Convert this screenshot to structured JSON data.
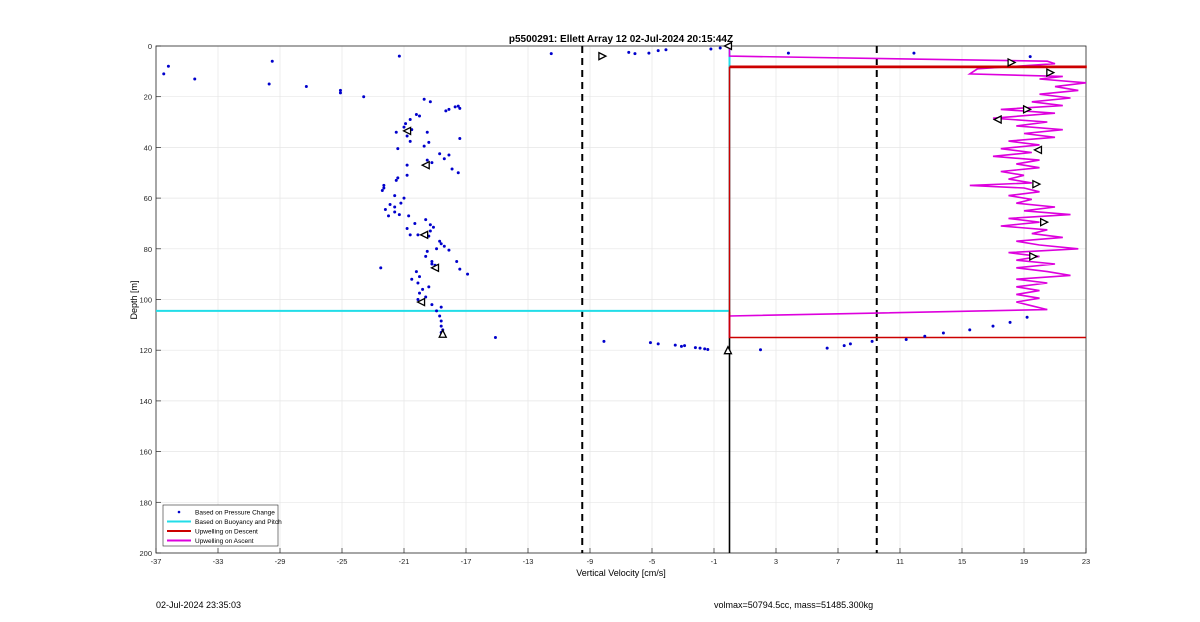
{
  "footer": {
    "timestamp": "02-Jul-2024 23:35:03",
    "vol_mass": "volmax=50794.5cc, mass=51485.300kg"
  },
  "chart_data": {
    "type": "scatter",
    "title": "p5500291: Ellett Array 12 02-Jul-2024 20:15:44Z",
    "xlabel": "Vertical Velocity [cm/s]",
    "ylabel": "Depth [m]",
    "xlim": [
      -37,
      23
    ],
    "ylim": [
      0,
      200
    ],
    "y_reversed": true,
    "xticks": [
      -37,
      -33,
      -29,
      -25,
      -21,
      -17,
      -13,
      -9,
      -5,
      -1,
      3,
      7,
      11,
      15,
      19,
      23
    ],
    "yticks": [
      0,
      20,
      40,
      60,
      80,
      100,
      120,
      140,
      160,
      180,
      200
    ],
    "grid": true,
    "legend_position": "bottom-left",
    "colors": {
      "pressure": "#0000cc",
      "buoyancy": "#22dde8",
      "descent": "#cc0000",
      "ascent": "#dd00dd",
      "markers": "#000000"
    },
    "legend": [
      "Based on Pressure Change",
      "Based on Buoyancy and Pitch",
      "Upwelling on Descent",
      "Upwelling on Ascent"
    ],
    "vlines_dashed": [
      -9.5,
      9.5
    ],
    "vline_solid": 0,
    "pressure_points": [
      [
        -36.2,
        8
      ],
      [
        -36.5,
        11
      ],
      [
        -34.5,
        13
      ],
      [
        -29.5,
        6
      ],
      [
        -29.7,
        15
      ],
      [
        -27.3,
        16
      ],
      [
        -25.1,
        17.5
      ],
      [
        -25.1,
        18.5
      ],
      [
        -23.6,
        20
      ],
      [
        -21.3,
        4
      ],
      [
        -19.7,
        21
      ],
      [
        -19.3,
        22
      ],
      [
        -18.1,
        25
      ],
      [
        -18.3,
        25.6
      ],
      [
        -17.7,
        24
      ],
      [
        -17.4,
        24.6
      ],
      [
        -17.5,
        23.7
      ],
      [
        -20.2,
        27
      ],
      [
        -20.0,
        27.6
      ],
      [
        -20.6,
        29
      ],
      [
        -20.9,
        30.6
      ],
      [
        -21.0,
        32
      ],
      [
        -20.5,
        33
      ],
      [
        -19.5,
        34
      ],
      [
        -17.4,
        36.5
      ],
      [
        -20.6,
        37.6
      ],
      [
        -21.4,
        40.5
      ],
      [
        -19.4,
        38
      ],
      [
        -19.7,
        39.5
      ],
      [
        -20.8,
        35.5
      ],
      [
        -21.5,
        34
      ],
      [
        -18.7,
        42.5
      ],
      [
        -18.1,
        43
      ],
      [
        -18.4,
        44.5
      ],
      [
        -19.5,
        45
      ],
      [
        -20.8,
        47
      ],
      [
        -19.2,
        46
      ],
      [
        -17.9,
        48.5
      ],
      [
        -17.5,
        50
      ],
      [
        -20.8,
        51
      ],
      [
        -21.4,
        52
      ],
      [
        -21.5,
        53
      ],
      [
        -22.3,
        55
      ],
      [
        -22.3,
        56
      ],
      [
        -22.4,
        57
      ],
      [
        -21.6,
        59
      ],
      [
        -21.0,
        60
      ],
      [
        -21.9,
        62.5
      ],
      [
        -21.2,
        62
      ],
      [
        -21.6,
        63.5
      ],
      [
        -22.2,
        64.5
      ],
      [
        -21.6,
        65.5
      ],
      [
        -21.3,
        66.5
      ],
      [
        -20.7,
        67
      ],
      [
        -22.0,
        67
      ],
      [
        -20.3,
        70
      ],
      [
        -19.6,
        68.5
      ],
      [
        -19.3,
        70.5
      ],
      [
        -20.8,
        72
      ],
      [
        -19.1,
        71.5
      ],
      [
        -19.3,
        73
      ],
      [
        -20.1,
        74.5
      ],
      [
        -19.4,
        75
      ],
      [
        -20.6,
        74.5
      ],
      [
        -18.7,
        77
      ],
      [
        -18.6,
        78
      ],
      [
        -18.4,
        79
      ],
      [
        -18.9,
        80
      ],
      [
        -19.5,
        81
      ],
      [
        -18.1,
        80.5
      ],
      [
        -19.6,
        83
      ],
      [
        -19.2,
        85
      ],
      [
        -19.0,
        86.5
      ],
      [
        -17.6,
        85
      ],
      [
        -19.2,
        86
      ],
      [
        -20.2,
        89
      ],
      [
        -20.0,
        91
      ],
      [
        -20.5,
        92
      ],
      [
        -20.1,
        93.5
      ],
      [
        -19.4,
        95
      ],
      [
        -19.8,
        96
      ],
      [
        -20.0,
        97.5
      ],
      [
        -19.6,
        99
      ],
      [
        -20.1,
        100
      ],
      [
        -19.2,
        102
      ],
      [
        -18.6,
        103
      ],
      [
        -18.9,
        104.5
      ],
      [
        -18.7,
        106.5
      ],
      [
        -18.6,
        108.5
      ],
      [
        -18.6,
        110.5
      ],
      [
        -18.5,
        112
      ],
      [
        -18.6,
        113
      ],
      [
        -18.5,
        113.5
      ],
      [
        -16.9,
        90
      ],
      [
        -17.4,
        88
      ],
      [
        -22.5,
        87.5
      ],
      [
        -15.1,
        115
      ],
      [
        -11.5,
        3
      ],
      [
        -8.1,
        116.5
      ],
      [
        -6.5,
        2.5
      ],
      [
        -6.1,
        3
      ],
      [
        -5.2,
        2.8
      ],
      [
        -4.6,
        1.8
      ],
      [
        -4.1,
        1.5
      ],
      [
        -5.1,
        117
      ],
      [
        -4.6,
        117.5
      ],
      [
        -3.5,
        118
      ],
      [
        -3.1,
        118.5
      ],
      [
        -2.9,
        118.2
      ],
      [
        -2.2,
        119
      ],
      [
        -1.9,
        119.2
      ],
      [
        -1.6,
        119.5
      ],
      [
        -1.2,
        1.2
      ],
      [
        -1.4,
        119.7
      ],
      [
        -0.6,
        0.8
      ],
      [
        3.8,
        2.8
      ],
      [
        11.9,
        2.8
      ],
      [
        19.4,
        4.2
      ],
      [
        2.0,
        119.8
      ],
      [
        6.3,
        119.2
      ],
      [
        7.4,
        118.2
      ],
      [
        7.8,
        117.5
      ],
      [
        9.2,
        116.5
      ],
      [
        11.4,
        115.8
      ],
      [
        12.6,
        114.5
      ],
      [
        13.8,
        113.2
      ],
      [
        15.5,
        112
      ],
      [
        17.0,
        110.5
      ],
      [
        18.1,
        109
      ],
      [
        19.2,
        107
      ]
    ],
    "triangles": [
      {
        "x": -8.2,
        "y": 4,
        "dir": "right"
      },
      {
        "x": -0.1,
        "y": 0,
        "dir": "left"
      },
      {
        "x": 18.2,
        "y": 6.5,
        "dir": "right"
      },
      {
        "x": 20.7,
        "y": 10.5,
        "dir": "right"
      },
      {
        "x": 19.2,
        "y": 25,
        "dir": "right"
      },
      {
        "x": 17.3,
        "y": 29,
        "dir": "left"
      },
      {
        "x": -20.8,
        "y": 33.5,
        "dir": "left"
      },
      {
        "x": 19.9,
        "y": 41,
        "dir": "left"
      },
      {
        "x": -19.6,
        "y": 47,
        "dir": "left"
      },
      {
        "x": 19.8,
        "y": 54.5,
        "dir": "right"
      },
      {
        "x": 20.3,
        "y": 69.5,
        "dir": "right"
      },
      {
        "x": -19.7,
        "y": 74.5,
        "dir": "left"
      },
      {
        "x": 19.6,
        "y": 83,
        "dir": "right"
      },
      {
        "x": -19.0,
        "y": 87.5,
        "dir": "left"
      },
      {
        "x": -19.9,
        "y": 101,
        "dir": "left"
      },
      {
        "x": -18.5,
        "y": 113.5,
        "dir": "up"
      },
      {
        "x": -0.1,
        "y": 120,
        "dir": "up"
      }
    ],
    "buoyancy_line": [
      [
        -37,
        104.5
      ],
      [
        0,
        104.5
      ],
      [
        0,
        0
      ]
    ],
    "descent_line": [
      [
        0,
        8
      ],
      [
        23,
        8
      ],
      [
        23,
        8.5
      ],
      [
        0,
        8.5
      ],
      [
        0,
        115
      ],
      [
        23,
        115
      ]
    ],
    "ascent_line": [
      [
        0,
        0.5
      ],
      [
        0,
        4
      ],
      [
        20.5,
        6
      ],
      [
        21.0,
        7
      ],
      [
        16.0,
        9
      ],
      [
        15.5,
        11
      ],
      [
        21.5,
        12
      ],
      [
        20.0,
        13
      ],
      [
        23.0,
        14.5
      ],
      [
        21.0,
        16
      ],
      [
        22.5,
        17.5
      ],
      [
        20.0,
        19
      ],
      [
        22.0,
        20.5
      ],
      [
        19.5,
        22
      ],
      [
        21.5,
        23.5
      ],
      [
        17.5,
        25
      ],
      [
        21.0,
        26.5
      ],
      [
        17.0,
        28.5
      ],
      [
        20.5,
        30
      ],
      [
        18.5,
        31.5
      ],
      [
        21.5,
        33
      ],
      [
        19.0,
        34.5
      ],
      [
        21.0,
        36
      ],
      [
        18.0,
        37.5
      ],
      [
        20.0,
        39
      ],
      [
        17.5,
        40.5
      ],
      [
        19.5,
        42
      ],
      [
        17.0,
        43.5
      ],
      [
        20.0,
        45
      ],
      [
        18.5,
        46.5
      ],
      [
        20.0,
        48
      ],
      [
        17.5,
        49.5
      ],
      [
        19.0,
        51
      ],
      [
        18.0,
        52.5
      ],
      [
        19.5,
        54
      ],
      [
        15.5,
        55
      ],
      [
        19.0,
        56
      ],
      [
        20.0,
        57.5
      ],
      [
        18.0,
        59
      ],
      [
        19.5,
        60.5
      ],
      [
        18.5,
        62
      ],
      [
        21.0,
        63.5
      ],
      [
        19.0,
        65
      ],
      [
        22.0,
        66.5
      ],
      [
        18.0,
        68
      ],
      [
        20.0,
        69.5
      ],
      [
        17.5,
        71
      ],
      [
        20.5,
        72.5
      ],
      [
        19.5,
        74
      ],
      [
        21.5,
        75.5
      ],
      [
        18.5,
        77
      ],
      [
        20.0,
        78.5
      ],
      [
        22.5,
        80
      ],
      [
        18.0,
        81.5
      ],
      [
        20.0,
        83
      ],
      [
        18.5,
        84.5
      ],
      [
        21.0,
        86
      ],
      [
        18.5,
        87.5
      ],
      [
        20.5,
        89
      ],
      [
        22.0,
        90.5
      ],
      [
        18.5,
        92
      ],
      [
        20.5,
        93.5
      ],
      [
        18.5,
        95
      ],
      [
        20.0,
        96.5
      ],
      [
        18.5,
        98
      ],
      [
        20.0,
        99.5
      ],
      [
        18.5,
        101
      ],
      [
        19.5,
        102.5
      ],
      [
        20.5,
        104
      ],
      [
        0,
        106.5
      ],
      [
        0,
        115
      ]
    ]
  }
}
